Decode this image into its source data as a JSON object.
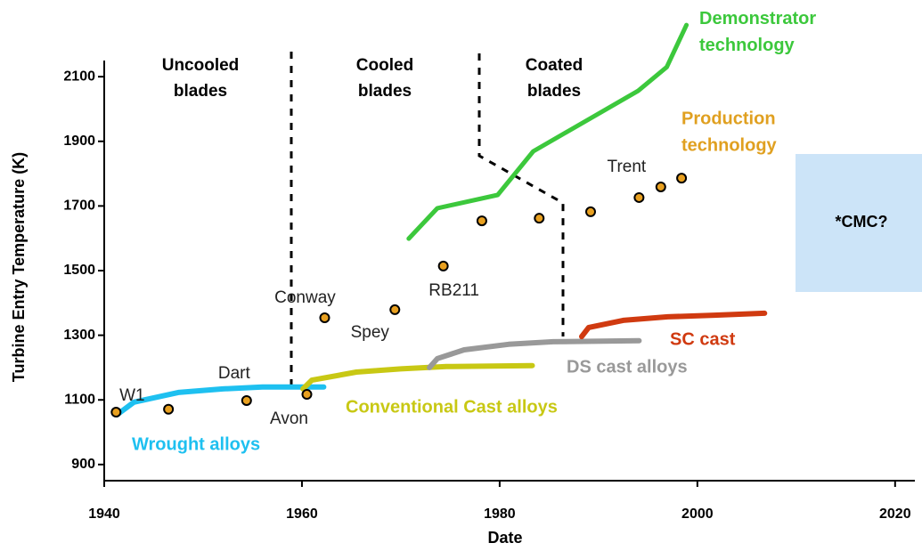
{
  "chart_data": {
    "type": "line",
    "x_label": "Date",
    "y_label": "Turbine Entry Temperature (K)",
    "xlim": [
      1940,
      2022
    ],
    "ylim": [
      850,
      2150
    ],
    "xticks": [
      1940,
      1960,
      1980,
      2000,
      2020
    ],
    "yticks": [
      900,
      1100,
      1300,
      1500,
      1700,
      1900,
      2100
    ],
    "series": [
      {
        "name": "Wrought alloys",
        "color": "#1ec0f0",
        "x": [
          1941.3,
          1943,
          1947.5,
          1952,
          1956,
          1962.2
        ],
        "values": [
          1054,
          1093,
          1123,
          1134,
          1140,
          1140
        ]
      },
      {
        "name": "Conventional Cast alloys",
        "color": "#c8c814",
        "x": [
          1960.1,
          1961,
          1965.5,
          1970,
          1974.6,
          1983.3
        ],
        "values": [
          1134,
          1161,
          1186,
          1196,
          1203,
          1206
        ]
      },
      {
        "name": "DS cast alloys",
        "color": "#999999",
        "x": [
          1972.9,
          1973.7,
          1976.4,
          1980.9,
          1985.4,
          1994.1
        ],
        "values": [
          1200,
          1228,
          1255,
          1272,
          1280,
          1283
        ]
      },
      {
        "name": "SC cast",
        "color": "#d03a10",
        "x": [
          1988.3,
          1989,
          1992.5,
          1997,
          2001.7,
          2006.8
        ],
        "values": [
          1296,
          1324,
          1346,
          1357,
          1362,
          1368
        ]
      },
      {
        "name": "Demonstrator technology",
        "color": "#3cc83c",
        "x": [
          1970.8,
          1973.7,
          1979.8,
          1983.4,
          1994,
          1996.9,
          1998.9
        ],
        "values": [
          1599,
          1693,
          1734,
          1869,
          2056,
          2130,
          2260
        ]
      }
    ],
    "points": {
      "color": "#e8a020",
      "labels": [
        "W1",
        null,
        "Dart",
        "Avon",
        "Conway",
        "Spey",
        "RB211",
        null,
        null,
        null,
        "Trent",
        null,
        null
      ],
      "x": [
        1941.2,
        1946.5,
        1954.4,
        1960.5,
        1962.3,
        1969.4,
        1974.3,
        1978.2,
        1984.0,
        1989.2,
        1994.1,
        1996.3,
        1998.4
      ],
      "values": [
        1062,
        1071,
        1098,
        1117,
        1354,
        1379,
        1514,
        1654,
        1662,
        1682,
        1726,
        1759,
        1786
      ]
    },
    "regions": [
      [
        "Uncooled",
        "blades"
      ],
      [
        "Cooled",
        "blades"
      ],
      [
        "Coated",
        "blades"
      ]
    ],
    "production_label": [
      "Production",
      "technology"
    ],
    "box_label": "*CMC?"
  }
}
